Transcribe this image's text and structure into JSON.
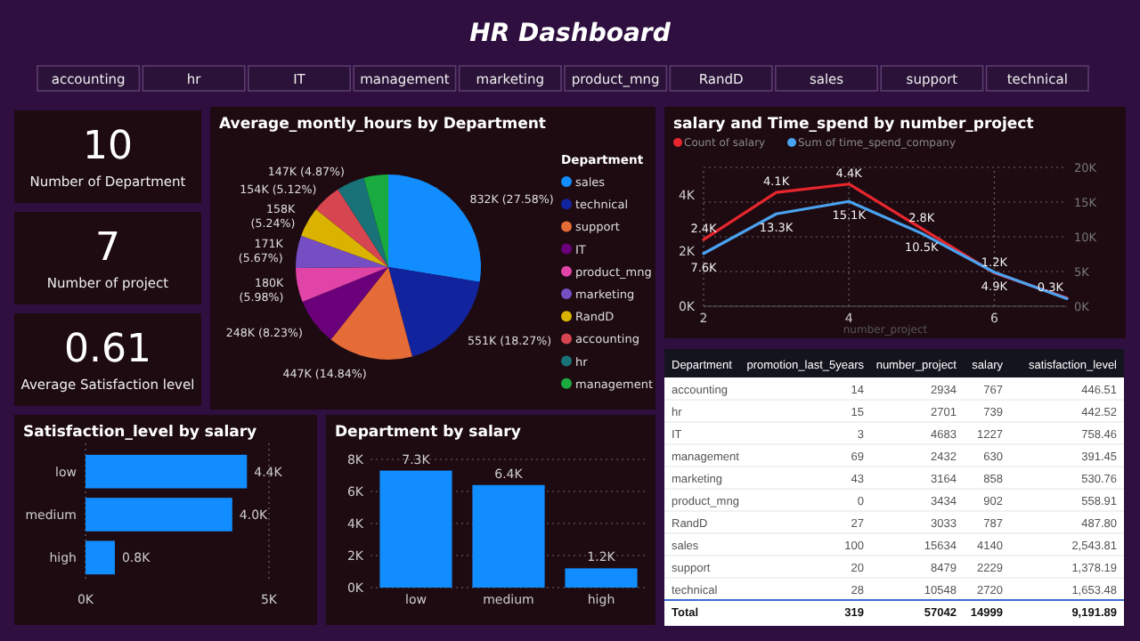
{
  "chart_data": [
    {
      "type": "other",
      "title": "HR Dashboard",
      "annotations": [
        "accounting",
        "hr",
        "IT",
        "management",
        "marketing",
        "product_mng",
        "RandD",
        "sales",
        "support",
        "technical"
      ]
    },
    {
      "type": "other",
      "annotations": [
        "10",
        "Number of Department",
        "7",
        "Number of project",
        "0.61",
        "Average Satisfaction level"
      ]
    },
    {
      "type": "pie",
      "title": "Average_montly_hours by Department",
      "legend_title": "Department",
      "legend": "right",
      "categories": [
        "sales",
        "technical",
        "support",
        "IT",
        "product_mng",
        "marketing",
        "RandD",
        "accounting",
        "hr",
        "management"
      ],
      "values": [
        832000,
        551000,
        447000,
        248000,
        180000,
        171000,
        158000,
        154000,
        147000,
        129000
      ],
      "value_labels": [
        "832K (27.58%)",
        "551K (18.27%)",
        "447K (14.84%)",
        "248K (8.23%)",
        "180K (5.98%)",
        "171K (5.67%)",
        "158K (5.24%)",
        "154K (5.12%)",
        "147K (4.87%)",
        null
      ],
      "colors": [
        "#118dff",
        "#12239e",
        "#e66c37",
        "#6b007b",
        "#e044a7",
        "#744ec2",
        "#d9b300",
        "#d64550",
        "#197278",
        "#1aab40"
      ]
    },
    {
      "type": "line",
      "title": "salary and Time_spend by number_project",
      "xlabel": "number_project",
      "legend": "top left",
      "grid": true,
      "marker": "none",
      "x": [
        2,
        3,
        4,
        5,
        6,
        7
      ],
      "xlim": [
        2,
        7
      ],
      "xticks": [
        2,
        4,
        6
      ],
      "ylim": [
        0,
        5000
      ],
      "yticks": [
        {
          "value": 0,
          "label": "0K"
        },
        {
          "value": 2000,
          "label": "2K"
        },
        {
          "value": 4000,
          "label": "4K"
        }
      ],
      "y2lim": [
        0,
        20000
      ],
      "y2ticks": [
        {
          "value": 0,
          "label": "0K"
        },
        {
          "value": 5000,
          "label": "5K"
        },
        {
          "value": 10000,
          "label": "10K"
        },
        {
          "value": 15000,
          "label": "15K"
        },
        {
          "value": 20000,
          "label": "20K"
        }
      ],
      "series": [
        {
          "name": "Count of salary",
          "color": "#e8262e",
          "values": [
            2400,
            4100,
            4400,
            2800,
            1200,
            300
          ],
          "value_labels": [
            "2.4K",
            "4.1K",
            "4.4K",
            "2.8K",
            "1.2K",
            "0.3K"
          ]
        },
        {
          "name": "Sum of time_spend_company",
          "color": "#4aa3f0",
          "axis": "y2",
          "values": [
            7600,
            13300,
            15100,
            10500,
            4900,
            1100
          ],
          "value_labels": [
            "7.6K",
            "13.3K",
            "15.1K",
            "10.5K",
            "4.9K",
            null
          ]
        }
      ]
    },
    {
      "type": "other",
      "xlabel": "Department",
      "data_labels": true,
      "categories": [
        "accounting",
        "hr",
        "IT",
        "management",
        "marketing",
        "product_mng",
        "RandD",
        "sales",
        "support",
        "technical",
        "Total"
      ],
      "series": [
        {
          "name": "promotion_last_5years",
          "values": [
            14,
            15,
            3,
            69,
            43,
            0,
            27,
            100,
            20,
            28,
            319
          ]
        },
        {
          "name": "number_project",
          "values": [
            2934,
            2701,
            4683,
            2432,
            3164,
            3434,
            3033,
            15634,
            8479,
            10548,
            57042
          ]
        },
        {
          "name": "salary",
          "values": [
            767,
            739,
            1227,
            630,
            858,
            902,
            787,
            4140,
            2229,
            2720,
            14999
          ]
        },
        {
          "name": "satisfaction_level",
          "values": [
            446.51,
            442.52,
            758.46,
            391.45,
            530.76,
            558.91,
            487.8,
            2543.81,
            1378.19,
            1653.48,
            9191.89
          ],
          "value_labels": [
            "446.51",
            "442.52",
            "758.46",
            "391.45",
            "530.76",
            "558.91",
            "487.80",
            "2,543.81",
            "1,378.19",
            "1,653.48",
            "9,191.89"
          ]
        }
      ]
    },
    {
      "type": "bar",
      "orientation": "horizontal",
      "title": "Satisfaction_level by salary",
      "grid": "x",
      "categories": [
        "low",
        "medium",
        "high"
      ],
      "values": [
        4400,
        4000,
        800
      ],
      "value_labels": [
        "4.4K",
        "4.0K",
        "0.8K"
      ],
      "color": "#118dff",
      "xlim": [
        0,
        5000
      ],
      "xticks": [
        {
          "value": 0,
          "label": "0K"
        },
        {
          "value": 5000,
          "label": "5K"
        }
      ]
    },
    {
      "type": "bar",
      "title": "Department by salary",
      "grid": "y",
      "categories": [
        "low",
        "medium",
        "high"
      ],
      "values": [
        7300,
        6400,
        1200
      ],
      "value_labels": [
        "7.3K",
        "6.4K",
        "1.2K"
      ],
      "color": "#118dff",
      "ylim": [
        0,
        8000
      ],
      "yticks": [
        {
          "value": 0,
          "label": "0K"
        },
        {
          "value": 2000,
          "label": "2K"
        },
        {
          "value": 4000,
          "label": "4K"
        },
        {
          "value": 6000,
          "label": "6K"
        },
        {
          "value": 8000,
          "label": "8K"
        }
      ]
    }
  ]
}
